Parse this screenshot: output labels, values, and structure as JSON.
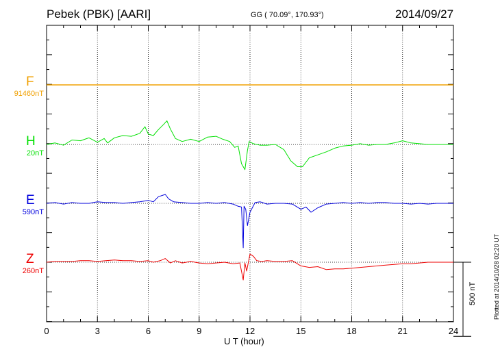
{
  "header": {
    "station": "Pebek (PBK)  [AARI]",
    "coords": "GG ( 70.09°, 170.93°)",
    "date": "2014/09/27"
  },
  "footer": {
    "plotted": "Plotted at 2014/10/28 02:20 UT",
    "scale_label": "500 nT"
  },
  "colors": {
    "F": "#f0a000",
    "H": "#00e000",
    "E": "#0000dd",
    "Z": "#ee0000",
    "grid": "#000000"
  },
  "chart_data": {
    "type": "line",
    "title": "Pebek (PBK)  [AARI]",
    "xlabel": "U T (hour)",
    "ylabel": "",
    "xlim": [
      0,
      24
    ],
    "xticks": [
      0,
      3,
      6,
      9,
      12,
      15,
      18,
      21,
      24
    ],
    "x_tick_labels": [
      "0",
      "3",
      "6",
      "9",
      "12",
      "15",
      "18",
      "21",
      "24"
    ],
    "grid": "dotted",
    "scale_bar_nT": 500,
    "nT_per_major_div": 200,
    "series": [
      {
        "name": "F",
        "baseline_label": "91460nT",
        "points": [
          [
            0,
            0
          ],
          [
            24,
            0
          ]
        ]
      },
      {
        "name": "H",
        "baseline_label": "20nT",
        "points": [
          [
            0,
            0
          ],
          [
            0.5,
            10
          ],
          [
            1,
            -5
          ],
          [
            1.5,
            30
          ],
          [
            2,
            25
          ],
          [
            2.5,
            45
          ],
          [
            3,
            15
          ],
          [
            3.4,
            40
          ],
          [
            3.6,
            10
          ],
          [
            4,
            45
          ],
          [
            4.5,
            60
          ],
          [
            5,
            55
          ],
          [
            5.5,
            75
          ],
          [
            5.8,
            120
          ],
          [
            6,
            70
          ],
          [
            6.3,
            60
          ],
          [
            6.6,
            100
          ],
          [
            6.9,
            135
          ],
          [
            7.1,
            160
          ],
          [
            7.3,
            105
          ],
          [
            7.6,
            40
          ],
          [
            8,
            20
          ],
          [
            8.5,
            35
          ],
          [
            9,
            20
          ],
          [
            9.5,
            50
          ],
          [
            10,
            55
          ],
          [
            10.4,
            35
          ],
          [
            10.8,
            20
          ],
          [
            11.1,
            -20
          ],
          [
            11.3,
            -10
          ],
          [
            11.5,
            -130
          ],
          [
            11.7,
            -170
          ],
          [
            11.85,
            -40
          ],
          [
            11.95,
            20
          ],
          [
            12.2,
            5
          ],
          [
            12.6,
            -5
          ],
          [
            13,
            -5
          ],
          [
            13.5,
            0
          ],
          [
            14,
            -35
          ],
          [
            14.4,
            -110
          ],
          [
            14.8,
            -150
          ],
          [
            15.1,
            -150
          ],
          [
            15.5,
            -90
          ],
          [
            16,
            -70
          ],
          [
            16.5,
            -50
          ],
          [
            17,
            -25
          ],
          [
            17.5,
            -10
          ],
          [
            18,
            -5
          ],
          [
            18.5,
            5
          ],
          [
            19,
            -5
          ],
          [
            19.5,
            0
          ],
          [
            20,
            0
          ],
          [
            20.5,
            10
          ],
          [
            21,
            25
          ],
          [
            21.5,
            10
          ],
          [
            22,
            5
          ],
          [
            22.5,
            0
          ],
          [
            23,
            0
          ],
          [
            24,
            0
          ]
        ]
      },
      {
        "name": "E",
        "baseline_label": "590nT",
        "points": [
          [
            0,
            0
          ],
          [
            0.5,
            5
          ],
          [
            1,
            -5
          ],
          [
            1.5,
            5
          ],
          [
            2,
            0
          ],
          [
            2.5,
            0
          ],
          [
            3,
            10
          ],
          [
            3.5,
            5
          ],
          [
            4,
            5
          ],
          [
            4.5,
            0
          ],
          [
            5,
            5
          ],
          [
            5.5,
            10
          ],
          [
            6,
            20
          ],
          [
            6.3,
            10
          ],
          [
            6.6,
            45
          ],
          [
            7,
            60
          ],
          [
            7.2,
            30
          ],
          [
            7.5,
            10
          ],
          [
            8,
            5
          ],
          [
            8.5,
            0
          ],
          [
            9,
            0
          ],
          [
            9.5,
            5
          ],
          [
            10,
            0
          ],
          [
            10.5,
            5
          ],
          [
            11,
            -5
          ],
          [
            11.3,
            -20
          ],
          [
            11.5,
            -25
          ],
          [
            11.6,
            -300
          ],
          [
            11.65,
            -20
          ],
          [
            11.75,
            -40
          ],
          [
            11.85,
            -150
          ],
          [
            12,
            -60
          ],
          [
            12.3,
            5
          ],
          [
            12.6,
            10
          ],
          [
            13,
            -5
          ],
          [
            13.5,
            0
          ],
          [
            14,
            0
          ],
          [
            14.5,
            -5
          ],
          [
            15,
            -40
          ],
          [
            15.3,
            -25
          ],
          [
            15.6,
            -60
          ],
          [
            16,
            -30
          ],
          [
            16.5,
            -5
          ],
          [
            17,
            0
          ],
          [
            17.5,
            5
          ],
          [
            18,
            0
          ],
          [
            18.5,
            5
          ],
          [
            19,
            0
          ],
          [
            19.5,
            5
          ],
          [
            20,
            5
          ],
          [
            20.5,
            0
          ],
          [
            21,
            0
          ],
          [
            21.5,
            -5
          ],
          [
            22,
            0
          ],
          [
            22.5,
            -5
          ],
          [
            23,
            0
          ],
          [
            24,
            0
          ]
        ]
      },
      {
        "name": "Z",
        "baseline_label": "260nT",
        "points": [
          [
            0,
            0
          ],
          [
            0.5,
            5
          ],
          [
            1,
            5
          ],
          [
            1.5,
            5
          ],
          [
            2,
            10
          ],
          [
            2.5,
            10
          ],
          [
            3,
            5
          ],
          [
            3.5,
            10
          ],
          [
            4,
            15
          ],
          [
            4.5,
            10
          ],
          [
            5,
            10
          ],
          [
            5.5,
            5
          ],
          [
            6,
            10
          ],
          [
            6.3,
            0
          ],
          [
            6.7,
            10
          ],
          [
            7,
            25
          ],
          [
            7.3,
            -5
          ],
          [
            7.6,
            10
          ],
          [
            8,
            -5
          ],
          [
            8.5,
            5
          ],
          [
            9,
            -5
          ],
          [
            9.5,
            -10
          ],
          [
            10,
            -5
          ],
          [
            10.5,
            0
          ],
          [
            11,
            -10
          ],
          [
            11.4,
            -5
          ],
          [
            11.6,
            -120
          ],
          [
            11.7,
            -5
          ],
          [
            11.8,
            -60
          ],
          [
            12,
            55
          ],
          [
            12.2,
            40
          ],
          [
            12.4,
            10
          ],
          [
            12.7,
            5
          ],
          [
            13,
            10
          ],
          [
            13.5,
            5
          ],
          [
            14,
            5
          ],
          [
            14.5,
            10
          ],
          [
            15,
            -25
          ],
          [
            15.5,
            -35
          ],
          [
            16,
            -30
          ],
          [
            16.5,
            -50
          ],
          [
            17,
            -45
          ],
          [
            17.5,
            -45
          ],
          [
            18,
            -40
          ],
          [
            18.5,
            -35
          ],
          [
            19,
            -30
          ],
          [
            19.5,
            -25
          ],
          [
            20,
            -20
          ],
          [
            20.5,
            -15
          ],
          [
            21,
            -10
          ],
          [
            21.5,
            -10
          ],
          [
            22,
            -5
          ],
          [
            22.5,
            0
          ],
          [
            23,
            0
          ],
          [
            24,
            0
          ]
        ]
      }
    ]
  }
}
